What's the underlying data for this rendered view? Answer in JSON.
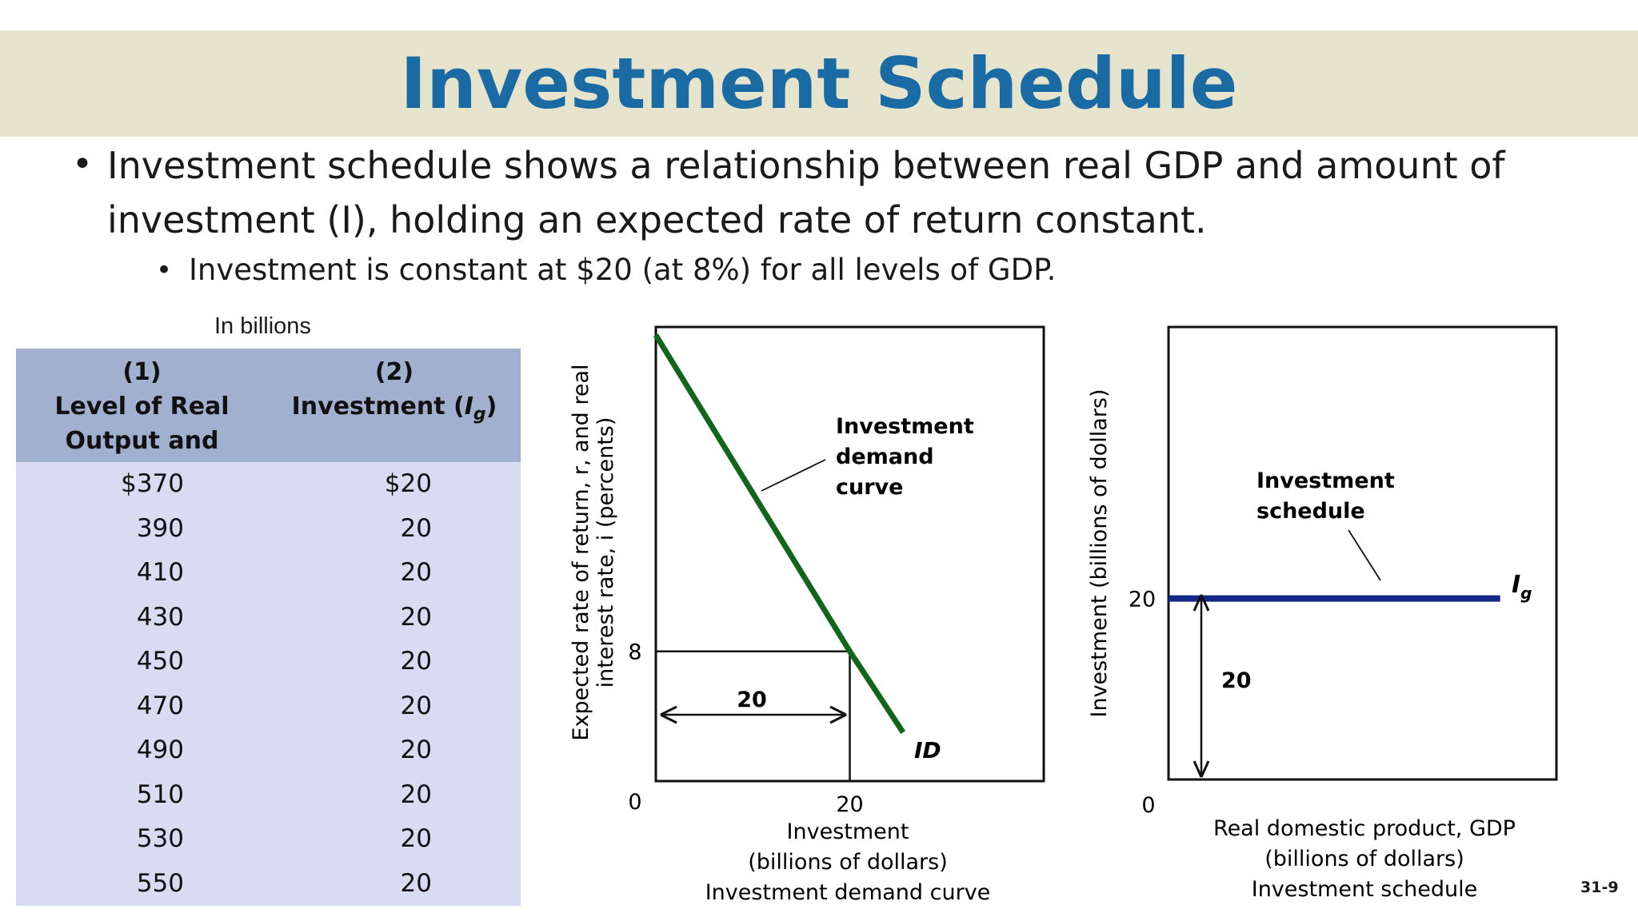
{
  "title": "Investment Schedule",
  "bullets": {
    "main_line1": "Investment schedule shows a relationship between real GDP and amount of",
    "main_line2": "investment (I), holding an expected rate of return constant.",
    "sub": "Investment is constant at $20 (at 8%) for all levels of GDP."
  },
  "table": {
    "caption": "In billions",
    "col1_header": [
      "(1)",
      "Level of Real",
      "Output and Income"
    ],
    "col2_header_num": "(2)",
    "col2_header_text": "Investment (",
    "col2_header_symbol": "I",
    "col2_header_sub": "g",
    "col2_header_close": ")",
    "rows": [
      [
        "$370",
        "$20"
      ],
      [
        "390",
        "20"
      ],
      [
        "410",
        "20"
      ],
      [
        "430",
        "20"
      ],
      [
        "450",
        "20"
      ],
      [
        "470",
        "20"
      ],
      [
        "490",
        "20"
      ],
      [
        "510",
        "20"
      ],
      [
        "530",
        "20"
      ],
      [
        "550",
        "20"
      ]
    ]
  },
  "chart_data": [
    {
      "type": "line",
      "title": "Investment demand curve",
      "xlabel": "Investment",
      "xlabel_units": "(billions of dollars)",
      "ylabel_line1": "Expected rate of return, r, and real",
      "ylabel_line2": "interest rate, i (percents)",
      "origin_label": "0",
      "x_ticks": [
        "20"
      ],
      "y_ticks": [
        "8"
      ],
      "xlim": [
        0,
        40
      ],
      "ylim": [
        0,
        28
      ],
      "series": [
        {
          "name": "ID",
          "x": [
            0,
            20,
            25.5
          ],
          "y": [
            27.5,
            8,
            3
          ]
        }
      ],
      "annotations": {
        "curve_label": [
          "Investment",
          "demand",
          "curve"
        ],
        "arrow_value": "20",
        "point": [
          20,
          8
        ]
      }
    },
    {
      "type": "line",
      "title": "Investment schedule",
      "xlabel": "Real domestic product, GDP",
      "xlabel_units": "(billions of dollars)",
      "ylabel": "Investment (billions of dollars)",
      "origin_label": "0",
      "y_ticks": [
        "20"
      ],
      "xlim": [
        0,
        100
      ],
      "ylim": [
        0,
        50
      ],
      "series": [
        {
          "name": "I",
          "name_sub": "g",
          "x": [
            0,
            85.5
          ],
          "y": [
            20,
            20
          ]
        }
      ],
      "annotations": {
        "line_label": [
          "Investment",
          "schedule"
        ],
        "arrow_value": "20"
      }
    }
  ],
  "slide_number": "31-9",
  "colors": {
    "title": "#1a6aa3",
    "band": "#e7e4ce",
    "table_head": "#a2b0d0",
    "table_body": "#d7dcf2",
    "id_curve": "#12661c",
    "schedule_line": "#14288a"
  }
}
